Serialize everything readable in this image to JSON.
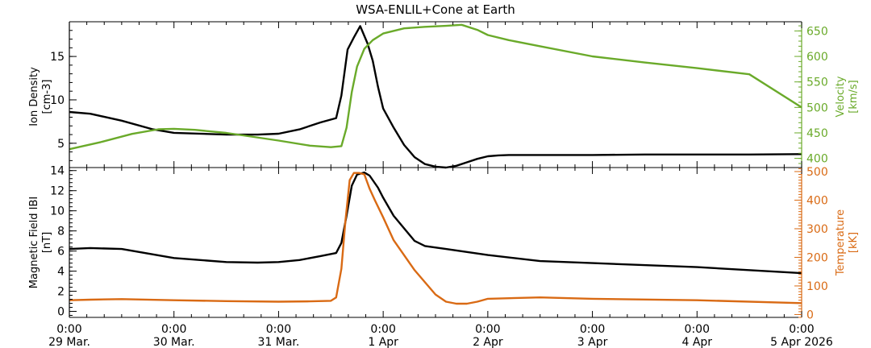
{
  "title": "WSA-ENLIL+Cone at Earth",
  "x_ticks": [
    {
      "top": "0:00",
      "bottom": "29 Mar."
    },
    {
      "top": "0:00",
      "bottom": "30 Mar."
    },
    {
      "top": "0:00",
      "bottom": "31 Mar."
    },
    {
      "top": "0:00",
      "bottom": "1 Apr"
    },
    {
      "top": "0:00",
      "bottom": "2 Apr"
    },
    {
      "top": "0:00",
      "bottom": "3 Apr"
    },
    {
      "top": "0:00",
      "bottom": "4 Apr"
    },
    {
      "top": "0:00",
      "bottom": "5 Apr 2026"
    }
  ],
  "colors": {
    "density": "#000000",
    "velocity": "#6aaa2a",
    "bfield": "#000000",
    "temperature": "#d96a14"
  },
  "chart_data": [
    {
      "type": "line",
      "panel": "top",
      "title": "WSA-ENLIL+Cone at Earth",
      "xlabel": "",
      "xlim_days": [
        0,
        7
      ],
      "left_axis": {
        "label_line1": "Ion Density",
        "label_line2": "[cm-3]",
        "ylim": [
          2.2,
          19.0
        ],
        "ticks": [
          5,
          10,
          15
        ]
      },
      "right_axis": {
        "label_line1": "Velocity",
        "label_line2": "[km/s]",
        "ylim": [
          382,
          668
        ],
        "ticks": [
          400,
          450,
          500,
          550,
          600,
          650
        ]
      },
      "series": [
        {
          "name": "Ion Density",
          "axis": "left",
          "color_key": "density",
          "x": [
            0,
            0.2,
            0.5,
            0.8,
            1.0,
            1.5,
            1.8,
            2.0,
            2.2,
            2.4,
            2.55,
            2.6,
            2.66,
            2.72,
            2.78,
            2.85,
            2.9,
            2.95,
            3.0,
            3.1,
            3.2,
            3.3,
            3.4,
            3.5,
            3.6,
            3.7,
            3.8,
            3.9,
            4.0,
            4.1,
            4.2,
            4.3,
            4.4,
            4.6,
            5.0,
            5.5,
            6.0,
            6.5,
            7.0
          ],
          "values": [
            8.6,
            8.4,
            7.6,
            6.6,
            6.2,
            6.0,
            6.0,
            6.1,
            6.6,
            7.4,
            7.9,
            10.5,
            15.8,
            17.2,
            18.5,
            16.5,
            14.5,
            11.5,
            9.0,
            6.8,
            4.8,
            3.4,
            2.6,
            2.3,
            2.2,
            2.4,
            2.8,
            3.2,
            3.5,
            3.6,
            3.65,
            3.65,
            3.65,
            3.65,
            3.65,
            3.7,
            3.7,
            3.7,
            3.75
          ]
        },
        {
          "name": "Velocity",
          "axis": "right",
          "color_key": "velocity",
          "x": [
            0,
            0.3,
            0.6,
            0.85,
            1.0,
            1.2,
            1.5,
            2.0,
            2.3,
            2.5,
            2.6,
            2.65,
            2.7,
            2.75,
            2.82,
            2.9,
            3.0,
            3.2,
            3.4,
            3.6,
            3.75,
            3.9,
            4.0,
            4.2,
            4.5,
            5.0,
            5.5,
            6.0,
            6.5,
            7.0
          ],
          "values": [
            418,
            432,
            448,
            457,
            458,
            456,
            450,
            435,
            425,
            422,
            424,
            460,
            530,
            580,
            615,
            632,
            645,
            655,
            658,
            660,
            662,
            652,
            642,
            632,
            620,
            600,
            588,
            577,
            565,
            500
          ]
        }
      ]
    },
    {
      "type": "line",
      "panel": "bottom",
      "xlabel": "",
      "xlim_days": [
        0,
        7
      ],
      "left_axis": {
        "label_line1": "Magnetic Field IBI",
        "label_line2": "[nT]",
        "ylim": [
          -0.6,
          14.3
        ],
        "ticks": [
          0,
          2,
          4,
          6,
          8,
          10,
          12,
          14
        ]
      },
      "right_axis": {
        "label_line1": "Temperature",
        "label_line2": "[kK]",
        "ylim": [
          -10,
          514
        ],
        "ticks": [
          0,
          100,
          200,
          300,
          400,
          500
        ]
      },
      "series": [
        {
          "name": "Magnetic Field IBI",
          "axis": "left",
          "color_key": "bfield",
          "x": [
            0,
            0.2,
            0.5,
            1.0,
            1.5,
            1.8,
            2.0,
            2.2,
            2.4,
            2.55,
            2.6,
            2.65,
            2.7,
            2.75,
            2.82,
            2.87,
            2.95,
            3.0,
            3.1,
            3.3,
            3.4,
            3.6,
            4.0,
            4.5,
            5.0,
            6.0,
            7.0
          ],
          "values": [
            6.2,
            6.3,
            6.2,
            5.3,
            4.9,
            4.85,
            4.9,
            5.1,
            5.5,
            5.8,
            6.8,
            9.5,
            12.5,
            13.6,
            13.8,
            13.5,
            12.3,
            11.3,
            9.5,
            7.0,
            6.5,
            6.2,
            5.6,
            5.0,
            4.8,
            4.4,
            3.8
          ]
        },
        {
          "name": "Temperature",
          "axis": "right",
          "color_key": "temperature",
          "x": [
            0,
            0.2,
            0.5,
            1.0,
            1.5,
            2.0,
            2.3,
            2.5,
            2.55,
            2.6,
            2.64,
            2.68,
            2.72,
            2.77,
            2.82,
            2.87,
            2.92,
            3.0,
            3.1,
            3.3,
            3.5,
            3.6,
            3.7,
            3.8,
            3.9,
            4.0,
            4.5,
            5.0,
            6.0,
            7.0
          ],
          "values": [
            50,
            52,
            54,
            50,
            47,
            45,
            46,
            48,
            60,
            160,
            330,
            470,
            495,
            495,
            490,
            440,
            400,
            340,
            260,
            155,
            70,
            45,
            38,
            38,
            45,
            55,
            60,
            55,
            50,
            40
          ]
        }
      ]
    }
  ]
}
